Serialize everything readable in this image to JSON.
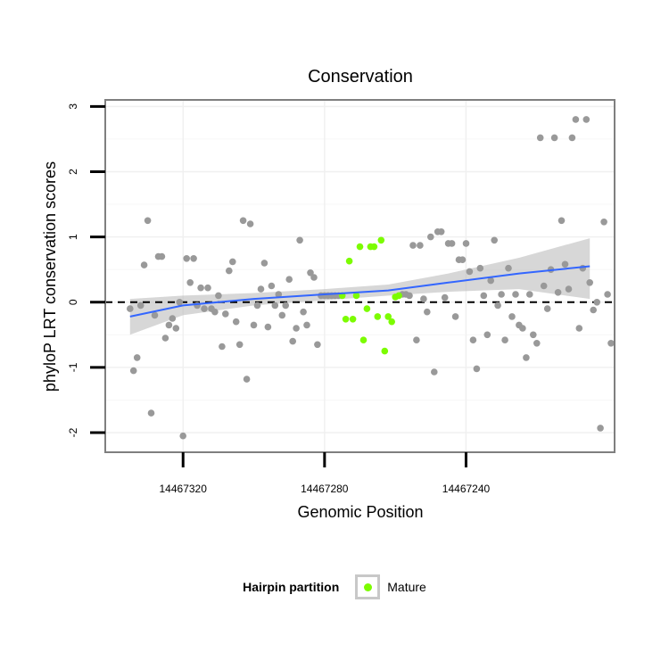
{
  "chart_data": {
    "type": "scatter",
    "title": "Conservation",
    "xlabel": "Genomic Position",
    "ylabel": "phyloP LRT conservation scores",
    "x_reversed": true,
    "xlim": [
      14467342,
      14467198
    ],
    "ylim": [
      -2.3,
      3.1
    ],
    "x_ticks": [
      14467320,
      14467280,
      14467240
    ],
    "y_ticks": [
      -2,
      -1,
      0,
      1,
      2,
      3
    ],
    "grid": true,
    "reference_line": {
      "y": 0,
      "style": "dashed",
      "color": "#000000"
    },
    "smooth": {
      "method": "loess",
      "color": "#3366ff",
      "band_color": "#bdbdbd",
      "points": [
        [
          14467335,
          -0.22,
          -0.5,
          0.05
        ],
        [
          14467320,
          -0.05,
          -0.2,
          0.1
        ],
        [
          14467300,
          0.05,
          -0.05,
          0.14
        ],
        [
          14467280,
          0.12,
          0.03,
          0.2
        ],
        [
          14467262,
          0.18,
          0.1,
          0.27
        ],
        [
          14467245,
          0.3,
          0.16,
          0.44
        ],
        [
          14467225,
          0.44,
          0.2,
          0.68
        ],
        [
          14467205,
          0.55,
          0.05,
          0.98
        ]
      ]
    },
    "legend": {
      "title": "Hairpin partition",
      "position": "bottom",
      "entries": [
        {
          "label": "Mature",
          "color": "#7cfc00"
        }
      ]
    },
    "series": [
      {
        "group": "other",
        "color": "#999999",
        "points": [
          [
            14467335,
            -0.1
          ],
          [
            14467334,
            -1.05
          ],
          [
            14467333,
            -0.85
          ],
          [
            14467332,
            -0.05
          ],
          [
            14467331,
            0.57
          ],
          [
            14467330,
            1.25
          ],
          [
            14467329,
            -1.7
          ],
          [
            14467328,
            -0.2
          ],
          [
            14467327,
            0.7
          ],
          [
            14467326,
            0.7
          ],
          [
            14467325,
            -0.55
          ],
          [
            14467324,
            -0.35
          ],
          [
            14467323,
            -0.25
          ],
          [
            14467322,
            -0.4
          ],
          [
            14467321,
            0.0
          ],
          [
            14467320,
            -2.05
          ],
          [
            14467319,
            0.67
          ],
          [
            14467318,
            0.3
          ],
          [
            14467317,
            0.67
          ],
          [
            14467316,
            -0.05
          ],
          [
            14467315,
            0.22
          ],
          [
            14467314,
            -0.1
          ],
          [
            14467313,
            0.22
          ],
          [
            14467312,
            -0.1
          ],
          [
            14467311,
            -0.15
          ],
          [
            14467310,
            0.1
          ],
          [
            14467309,
            -0.68
          ],
          [
            14467308,
            -0.18
          ],
          [
            14467307,
            0.48
          ],
          [
            14467306,
            0.62
          ],
          [
            14467305,
            -0.3
          ],
          [
            14467304,
            -0.65
          ],
          [
            14467303,
            1.25
          ],
          [
            14467302,
            -1.18
          ],
          [
            14467301,
            1.2
          ],
          [
            14467300,
            -0.35
          ],
          [
            14467299,
            -0.05
          ],
          [
            14467298,
            0.2
          ],
          [
            14467297,
            0.6
          ],
          [
            14467296,
            -0.38
          ],
          [
            14467295,
            0.25
          ],
          [
            14467294,
            -0.05
          ],
          [
            14467293,
            0.12
          ],
          [
            14467292,
            -0.2
          ],
          [
            14467291,
            -0.05
          ],
          [
            14467290,
            0.35
          ],
          [
            14467289,
            -0.6
          ],
          [
            14467288,
            -0.4
          ],
          [
            14467287,
            0.95
          ],
          [
            14467286,
            -0.15
          ],
          [
            14467285,
            -0.35
          ],
          [
            14467284,
            0.45
          ],
          [
            14467283,
            0.38
          ],
          [
            14467282,
            -0.65
          ],
          [
            14467281,
            0.1
          ],
          [
            14467280,
            0.1
          ],
          [
            14467279,
            0.1
          ],
          [
            14467278,
            0.1
          ],
          [
            14467277,
            0.1
          ],
          [
            14467276,
            0.1
          ],
          [
            14467258,
            0.12
          ],
          [
            14467257,
            0.12
          ],
          [
            14467256,
            0.1
          ],
          [
            14467255,
            0.87
          ],
          [
            14467254,
            -0.58
          ],
          [
            14467253,
            0.87
          ],
          [
            14467252,
            0.05
          ],
          [
            14467251,
            -0.15
          ],
          [
            14467250,
            1.0
          ],
          [
            14467249,
            -1.07
          ],
          [
            14467248,
            1.08
          ],
          [
            14467247,
            1.08
          ],
          [
            14467246,
            0.07
          ],
          [
            14467245,
            0.9
          ],
          [
            14467244,
            0.9
          ],
          [
            14467243,
            -0.22
          ],
          [
            14467242,
            0.65
          ],
          [
            14467241,
            0.65
          ],
          [
            14467240,
            0.9
          ],
          [
            14467239,
            0.47
          ],
          [
            14467238,
            -0.58
          ],
          [
            14467237,
            -1.02
          ],
          [
            14467236,
            0.52
          ],
          [
            14467235,
            0.1
          ],
          [
            14467234,
            -0.5
          ],
          [
            14467233,
            0.33
          ],
          [
            14467232,
            0.95
          ],
          [
            14467231,
            -0.05
          ],
          [
            14467230,
            0.12
          ],
          [
            14467229,
            -0.58
          ],
          [
            14467228,
            0.52
          ],
          [
            14467227,
            -0.22
          ],
          [
            14467226,
            0.12
          ],
          [
            14467225,
            -0.35
          ],
          [
            14467224,
            -0.4
          ],
          [
            14467223,
            -0.85
          ],
          [
            14467222,
            0.12
          ],
          [
            14467221,
            -0.5
          ],
          [
            14467220,
            -0.63
          ],
          [
            14467219,
            2.52
          ],
          [
            14467218,
            0.25
          ],
          [
            14467217,
            -0.1
          ],
          [
            14467216,
            0.5
          ],
          [
            14467215,
            2.52
          ],
          [
            14467214,
            0.15
          ],
          [
            14467213,
            1.25
          ],
          [
            14467212,
            0.58
          ],
          [
            14467211,
            0.2
          ],
          [
            14467210,
            2.52
          ],
          [
            14467209,
            2.8
          ],
          [
            14467208,
            -0.4
          ],
          [
            14467207,
            0.52
          ],
          [
            14467206,
            2.8
          ],
          [
            14467205,
            0.3
          ],
          [
            14467204,
            -0.12
          ],
          [
            14467203,
            0.0
          ],
          [
            14467202,
            -1.93
          ],
          [
            14467201,
            1.23
          ],
          [
            14467200,
            0.12
          ],
          [
            14467199,
            -0.63
          ]
        ]
      },
      {
        "group": "Mature",
        "color": "#7cfc00",
        "points": [
          [
            14467275,
            0.1
          ],
          [
            14467274,
            -0.26
          ],
          [
            14467273,
            0.63
          ],
          [
            14467272,
            -0.26
          ],
          [
            14467271,
            0.1
          ],
          [
            14467270,
            0.85
          ],
          [
            14467269,
            -0.58
          ],
          [
            14467268,
            -0.1
          ],
          [
            14467267,
            0.85
          ],
          [
            14467266,
            0.85
          ],
          [
            14467265,
            -0.22
          ],
          [
            14467264,
            0.95
          ],
          [
            14467263,
            -0.75
          ],
          [
            14467262,
            -0.22
          ],
          [
            14467261,
            -0.3
          ],
          [
            14467260,
            0.08
          ],
          [
            14467259,
            0.1
          ]
        ]
      }
    ]
  }
}
